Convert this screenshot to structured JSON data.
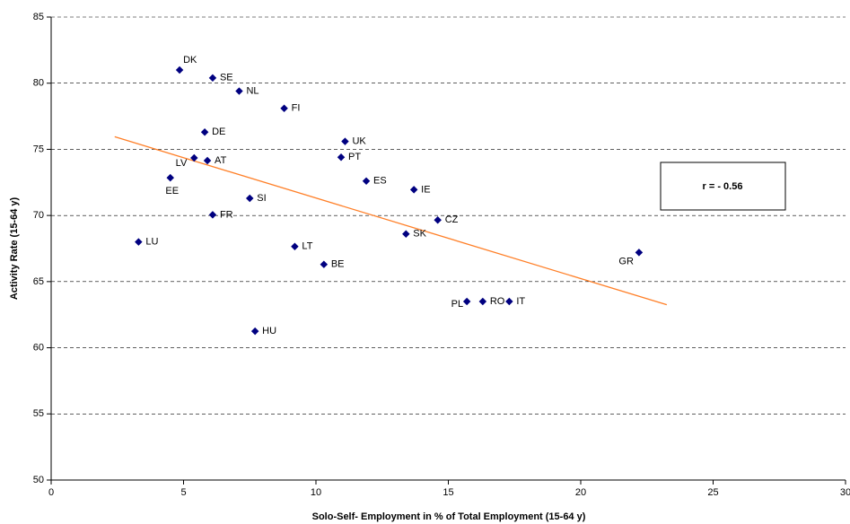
{
  "chart_data": {
    "type": "scatter",
    "x_label": "Solo-Self- Employment in % of Total Employment (15-64 y)",
    "y_label": "Activity Rate (15-64 y)",
    "annotation": "r = - 0.56",
    "labels": [
      "DK",
      "SE",
      "NL",
      "FI",
      "DE",
      "UK",
      "PT",
      "LV",
      "AT",
      "EE",
      "ES",
      "IE",
      "SI",
      "FR",
      "CZ",
      "SK",
      "LU",
      "LT",
      "GR",
      "BE",
      "PL",
      "RO",
      "IT",
      "HU"
    ],
    "x": [
      4.85,
      6.1,
      7.1,
      8.8,
      5.8,
      11.1,
      10.95,
      5.4,
      5.9,
      4.5,
      11.9,
      13.7,
      7.5,
      6.1,
      14.6,
      13.4,
      3.3,
      9.2,
      22.2,
      10.3,
      15.7,
      16.3,
      17.3,
      7.7
    ],
    "y": [
      81.0,
      80.4,
      79.4,
      78.1,
      76.3,
      75.6,
      74.4,
      74.35,
      74.15,
      72.85,
      72.6,
      71.95,
      71.3,
      70.05,
      69.65,
      68.6,
      68.0,
      67.65,
      67.2,
      66.3,
      63.5,
      63.5,
      63.5,
      61.25
    ],
    "color": "#000080",
    "trendline": {
      "x": [
        2.4,
        23.25
      ],
      "y": [
        75.95,
        63.25
      ],
      "color": "#ff7f27"
    },
    "xlim": [
      0,
      30
    ],
    "ylim": [
      50,
      85
    ],
    "xticks": [
      0,
      5,
      10,
      15,
      20,
      25,
      30
    ],
    "yticks": [
      50,
      55,
      60,
      65,
      70,
      75,
      80,
      85
    ],
    "grid": true
  }
}
